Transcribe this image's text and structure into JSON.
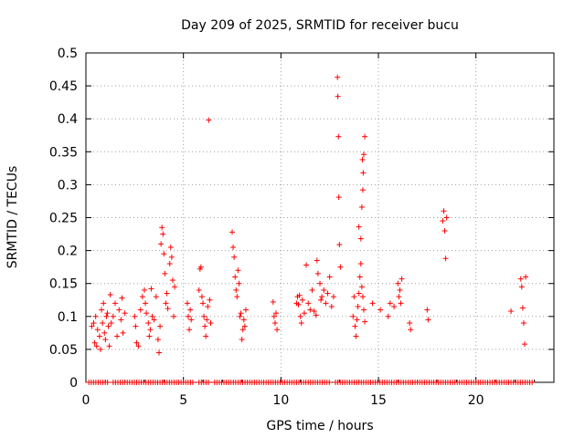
{
  "chart_data": {
    "type": "scatter",
    "title": "Day 209 of 2025, SRMTID for receiver bucu",
    "xlabel": "GPS time / hours",
    "ylabel": "SRMTID / TECUs",
    "xlim": [
      0,
      24
    ],
    "ylim": [
      0,
      0.5
    ],
    "grid": true,
    "marker": "+",
    "series_color": "#ff0000",
    "x_ticks": [
      {
        "value": 0,
        "label": "0"
      },
      {
        "value": 5,
        "label": "5"
      },
      {
        "value": 10,
        "label": "10"
      },
      {
        "value": 15,
        "label": "15"
      },
      {
        "value": 20,
        "label": "20"
      }
    ],
    "y_ticks": [
      {
        "value": 0,
        "label": "0"
      },
      {
        "value": 0.05,
        "label": "0.05"
      },
      {
        "value": 0.1,
        "label": "0.1"
      },
      {
        "value": 0.15,
        "label": "0.15"
      },
      {
        "value": 0.2,
        "label": "0.2"
      },
      {
        "value": 0.25,
        "label": "0.25"
      },
      {
        "value": 0.3,
        "label": "0.3"
      },
      {
        "value": 0.35,
        "label": "0.35"
      },
      {
        "value": 0.4,
        "label": "0.4"
      },
      {
        "value": 0.45,
        "label": "0.45"
      },
      {
        "value": 0.5,
        "label": "0.5"
      }
    ],
    "points": [
      [
        0.3,
        0.085
      ],
      [
        0.4,
        0.09
      ],
      [
        0.45,
        0.06
      ],
      [
        0.5,
        0.1
      ],
      [
        0.55,
        0.055
      ],
      [
        0.6,
        0.08
      ],
      [
        0.7,
        0.07
      ],
      [
        0.75,
        0.05
      ],
      [
        0.8,
        0.11
      ],
      [
        0.85,
        0.09
      ],
      [
        0.9,
        0.12
      ],
      [
        0.95,
        0.075
      ],
      [
        1.0,
        0.065
      ],
      [
        1.05,
        0.1
      ],
      [
        1.1,
        0.105
      ],
      [
        1.15,
        0.085
      ],
      [
        1.2,
        0.055
      ],
      [
        1.25,
        0.133
      ],
      [
        1.3,
        0.09
      ],
      [
        1.4,
        0.1
      ],
      [
        1.5,
        0.12
      ],
      [
        1.6,
        0.07
      ],
      [
        1.7,
        0.11
      ],
      [
        1.8,
        0.095
      ],
      [
        1.85,
        0.128
      ],
      [
        1.9,
        0.075
      ],
      [
        2.0,
        0.105
      ],
      [
        2.5,
        0.1
      ],
      [
        2.55,
        0.085
      ],
      [
        2.6,
        0.06
      ],
      [
        2.7,
        0.055
      ],
      [
        2.8,
        0.11
      ],
      [
        2.9,
        0.13
      ],
      [
        3.0,
        0.14
      ],
      [
        3.05,
        0.12
      ],
      [
        3.1,
        0.105
      ],
      [
        3.2,
        0.09
      ],
      [
        3.25,
        0.07
      ],
      [
        3.3,
        0.08
      ],
      [
        3.35,
        0.142
      ],
      [
        3.4,
        0.1
      ],
      [
        3.5,
        0.095
      ],
      [
        3.6,
        0.13
      ],
      [
        3.7,
        0.065
      ],
      [
        3.75,
        0.045
      ],
      [
        3.8,
        0.085
      ],
      [
        3.85,
        0.21
      ],
      [
        3.9,
        0.235
      ],
      [
        3.95,
        0.225
      ],
      [
        4.0,
        0.195
      ],
      [
        4.05,
        0.165
      ],
      [
        4.1,
        0.12
      ],
      [
        4.15,
        0.135
      ],
      [
        4.2,
        0.112
      ],
      [
        4.3,
        0.18
      ],
      [
        4.35,
        0.205
      ],
      [
        4.4,
        0.19
      ],
      [
        4.45,
        0.155
      ],
      [
        4.5,
        0.1
      ],
      [
        4.55,
        0.145
      ],
      [
        5.2,
        0.12
      ],
      [
        5.25,
        0.1
      ],
      [
        5.3,
        0.08
      ],
      [
        5.35,
        0.11
      ],
      [
        5.4,
        0.095
      ],
      [
        5.8,
        0.14
      ],
      [
        5.85,
        0.172
      ],
      [
        5.9,
        0.175
      ],
      [
        5.95,
        0.13
      ],
      [
        6.0,
        0.12
      ],
      [
        6.05,
        0.1
      ],
      [
        6.1,
        0.085
      ],
      [
        6.15,
        0.07
      ],
      [
        6.2,
        0.095
      ],
      [
        6.25,
        0.115
      ],
      [
        6.3,
        0.398
      ],
      [
        6.35,
        0.125
      ],
      [
        6.4,
        0.09
      ],
      [
        7.5,
        0.228
      ],
      [
        7.55,
        0.205
      ],
      [
        7.6,
        0.19
      ],
      [
        7.65,
        0.16
      ],
      [
        7.7,
        0.14
      ],
      [
        7.75,
        0.13
      ],
      [
        7.8,
        0.17
      ],
      [
        7.85,
        0.15
      ],
      [
        7.9,
        0.1
      ],
      [
        7.95,
        0.105
      ],
      [
        8.0,
        0.065
      ],
      [
        8.05,
        0.08
      ],
      [
        8.1,
        0.095
      ],
      [
        8.15,
        0.085
      ],
      [
        8.2,
        0.11
      ],
      [
        9.6,
        0.122
      ],
      [
        9.65,
        0.1
      ],
      [
        9.7,
        0.09
      ],
      [
        9.75,
        0.105
      ],
      [
        9.8,
        0.08
      ],
      [
        10.8,
        0.12
      ],
      [
        10.85,
        0.13
      ],
      [
        10.9,
        0.118
      ],
      [
        10.95,
        0.132
      ],
      [
        11.0,
        0.1
      ],
      [
        11.05,
        0.09
      ],
      [
        11.1,
        0.125
      ],
      [
        11.2,
        0.105
      ],
      [
        11.3,
        0.178
      ],
      [
        11.4,
        0.12
      ],
      [
        11.5,
        0.11
      ],
      [
        11.6,
        0.14
      ],
      [
        11.7,
        0.108
      ],
      [
        11.8,
        0.102
      ],
      [
        11.85,
        0.185
      ],
      [
        11.9,
        0.165
      ],
      [
        12.0,
        0.15
      ],
      [
        12.05,
        0.125
      ],
      [
        12.1,
        0.13
      ],
      [
        12.2,
        0.14
      ],
      [
        12.3,
        0.12
      ],
      [
        12.4,
        0.135
      ],
      [
        12.5,
        0.16
      ],
      [
        12.6,
        0.115
      ],
      [
        12.7,
        0.13
      ],
      [
        12.9,
        0.463
      ],
      [
        12.92,
        0.434
      ],
      [
        12.95,
        0.373
      ],
      [
        12.97,
        0.281
      ],
      [
        13.0,
        0.209
      ],
      [
        13.05,
        0.175
      ],
      [
        13.7,
        0.1
      ],
      [
        13.75,
        0.13
      ],
      [
        13.8,
        0.085
      ],
      [
        13.85,
        0.07
      ],
      [
        13.9,
        0.095
      ],
      [
        13.95,
        0.115
      ],
      [
        14.0,
        0.135
      ],
      [
        14.05,
        0.16
      ],
      [
        14.1,
        0.18
      ],
      [
        14.15,
        0.145
      ],
      [
        14.2,
        0.13
      ],
      [
        14.25,
        0.11
      ],
      [
        14.3,
        0.092
      ],
      [
        14.0,
        0.236
      ],
      [
        14.1,
        0.218
      ],
      [
        14.15,
        0.266
      ],
      [
        14.2,
        0.292
      ],
      [
        14.22,
        0.318
      ],
      [
        14.18,
        0.338
      ],
      [
        14.25,
        0.346
      ],
      [
        14.3,
        0.373
      ],
      [
        14.7,
        0.12
      ],
      [
        15.1,
        0.11
      ],
      [
        15.5,
        0.1
      ],
      [
        15.6,
        0.12
      ],
      [
        15.8,
        0.115
      ],
      [
        16.0,
        0.15
      ],
      [
        16.05,
        0.13
      ],
      [
        16.1,
        0.14
      ],
      [
        16.15,
        0.12
      ],
      [
        16.2,
        0.157
      ],
      [
        16.6,
        0.09
      ],
      [
        16.65,
        0.08
      ],
      [
        17.5,
        0.11
      ],
      [
        17.55,
        0.095
      ],
      [
        18.3,
        0.245
      ],
      [
        18.35,
        0.26
      ],
      [
        18.4,
        0.23
      ],
      [
        18.45,
        0.188
      ],
      [
        18.5,
        0.25
      ],
      [
        21.8,
        0.108
      ],
      [
        22.3,
        0.157
      ],
      [
        22.35,
        0.145
      ],
      [
        22.4,
        0.113
      ],
      [
        22.45,
        0.09
      ],
      [
        22.5,
        0.058
      ],
      [
        22.55,
        0.16
      ]
    ],
    "zero_baseline_x_ranges": [
      [
        0.15,
        1.2
      ],
      [
        1.4,
        5.5
      ],
      [
        5.8,
        6.3
      ],
      [
        6.6,
        12.5
      ],
      [
        12.8,
        22.9
      ]
    ],
    "zero_baseline_step": 0.12
  }
}
